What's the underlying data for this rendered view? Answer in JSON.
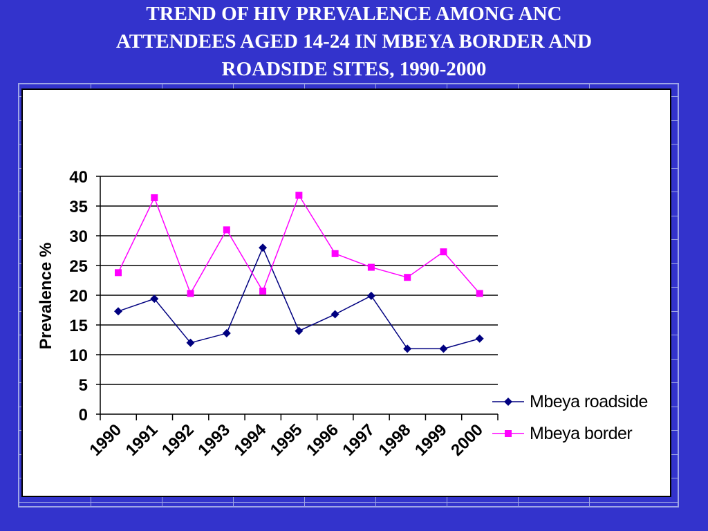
{
  "slide": {
    "title_lines": [
      "TREND OF HIV PREVALENCE AMONG ANC",
      "ATTENDEES AGED 14-24 IN MBEYA BORDER AND",
      "ROADSIDE SITES, 1990-2000"
    ]
  },
  "colors": {
    "background": "#3333cc",
    "roadside": "#000080",
    "border": "#ff00ff",
    "title_text": "#ffffff"
  },
  "chart_data": {
    "type": "line",
    "title": "TREND OF HIV PREVALENCE AMONG ANC ATTENDEES AGED 14-24 IN MBEYA BORDER AND ROADSIDE SITES, 1990-2000",
    "xlabel": "",
    "ylabel": "Prevalence %",
    "categories": [
      "1990",
      "1991",
      "1992",
      "1993",
      "1994",
      "1995",
      "1996",
      "1997",
      "1998",
      "1999",
      "2000"
    ],
    "ylim": [
      0,
      40
    ],
    "yticks": [
      0,
      5,
      10,
      15,
      20,
      25,
      30,
      35,
      40
    ],
    "grid": "horizontal",
    "legend_position": "right",
    "series": [
      {
        "name": "Mbeya roadside",
        "marker": "diamond",
        "color": "#000080",
        "values": [
          17.3,
          19.4,
          12.0,
          13.6,
          28.0,
          14.0,
          16.8,
          19.9,
          11.0,
          11.0,
          12.7
        ]
      },
      {
        "name": "Mbeya border",
        "marker": "square",
        "color": "#ff00ff",
        "values": [
          23.8,
          36.4,
          20.3,
          31.0,
          20.7,
          36.8,
          27.0,
          24.7,
          23.0,
          27.3,
          20.3
        ]
      }
    ]
  }
}
